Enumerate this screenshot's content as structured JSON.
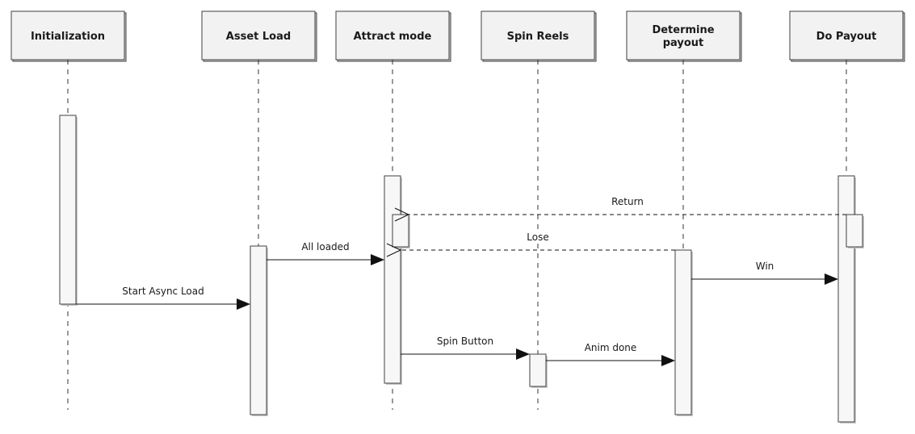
{
  "lifelines": [
    {
      "id": "init",
      "title_lines": [
        "Initialization"
      ]
    },
    {
      "id": "asset",
      "title_lines": [
        "Asset Load"
      ]
    },
    {
      "id": "attract",
      "title_lines": [
        "Attract mode"
      ]
    },
    {
      "id": "spin",
      "title_lines": [
        "Spin Reels"
      ]
    },
    {
      "id": "payout_det",
      "title_lines": [
        "Determine",
        "payout"
      ]
    },
    {
      "id": "payout",
      "title_lines": [
        "Do Payout"
      ]
    }
  ],
  "messages": [
    {
      "label": "Start Async Load",
      "from": "init",
      "to": "asset",
      "style": "sync"
    },
    {
      "label": "All loaded",
      "from": "asset",
      "to": "attract",
      "style": "sync"
    },
    {
      "label": "Spin Button",
      "from": "attract",
      "to": "spin",
      "style": "sync"
    },
    {
      "label": "Anim done",
      "from": "spin",
      "to": "payout_det",
      "style": "sync"
    },
    {
      "label": "Win",
      "from": "payout_det",
      "to": "payout",
      "style": "sync"
    },
    {
      "label": "Lose",
      "from": "payout_det",
      "to": "attract",
      "style": "return"
    },
    {
      "label": "Return",
      "from": "payout",
      "to": "attract",
      "style": "return"
    }
  ]
}
